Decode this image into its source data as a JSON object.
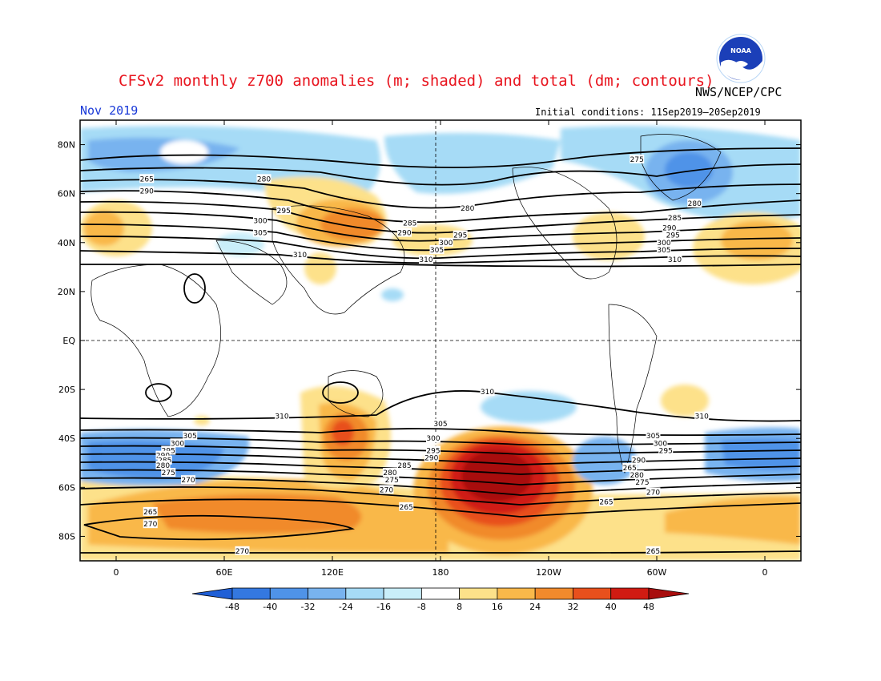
{
  "header": {
    "title": "CFSv2 monthly z700 anomalies (m; shaded) and total (dm; contours)",
    "agency": "NWS/NCEP/CPC",
    "month": "Nov 2019",
    "initial_conditions": "Initial conditions: 11Sep2019–20Sep2019",
    "logo_text": "NOAA"
  },
  "map": {
    "lat_labels": [
      "80N",
      "60N",
      "40N",
      "20N",
      "EQ",
      "20S",
      "40S",
      "60S",
      "80S"
    ],
    "lat_values": [
      80,
      60,
      40,
      20,
      0,
      -20,
      -40,
      -60,
      -80
    ],
    "lon_labels": [
      "0",
      "60E",
      "120E",
      "180",
      "120W",
      "60W",
      "0"
    ],
    "lon_values": [
      0,
      60,
      120,
      180,
      240,
      300,
      360
    ],
    "lon_range": [
      -20,
      380
    ],
    "lat_range": [
      -90,
      90
    ],
    "contour_labels": [
      {
        "text": "265",
        "lon": 17,
        "lat": 66
      },
      {
        "text": "290",
        "lon": 17,
        "lat": 61
      },
      {
        "text": "280",
        "lon": 82,
        "lat": 66
      },
      {
        "text": "295",
        "lon": 93,
        "lat": 53
      },
      {
        "text": "300",
        "lon": 80,
        "lat": 49
      },
      {
        "text": "305",
        "lon": 80,
        "lat": 44
      },
      {
        "text": "310",
        "lon": 102,
        "lat": 35
      },
      {
        "text": "285",
        "lon": 163,
        "lat": 48
      },
      {
        "text": "290",
        "lon": 160,
        "lat": 44
      },
      {
        "text": "295",
        "lon": 191,
        "lat": 43
      },
      {
        "text": "300",
        "lon": 183,
        "lat": 40
      },
      {
        "text": "305",
        "lon": 178,
        "lat": 37
      },
      {
        "text": "310",
        "lon": 172,
        "lat": 33
      },
      {
        "text": "280",
        "lon": 195,
        "lat": 54
      },
      {
        "text": "275",
        "lon": 289,
        "lat": 74
      },
      {
        "text": "280",
        "lon": 321,
        "lat": 56
      },
      {
        "text": "285",
        "lon": 310,
        "lat": 50
      },
      {
        "text": "290",
        "lon": 307,
        "lat": 46
      },
      {
        "text": "295",
        "lon": 309,
        "lat": 43
      },
      {
        "text": "300",
        "lon": 304,
        "lat": 40
      },
      {
        "text": "305",
        "lon": 304,
        "lat": 37
      },
      {
        "text": "310",
        "lon": 310,
        "lat": 33
      },
      {
        "text": "310",
        "lon": 206,
        "lat": -21
      },
      {
        "text": "310",
        "lon": 92,
        "lat": -31
      },
      {
        "text": "310",
        "lon": 325,
        "lat": -31
      },
      {
        "text": "305",
        "lon": 41,
        "lat": -39
      },
      {
        "text": "300",
        "lon": 34,
        "lat": -42
      },
      {
        "text": "295",
        "lon": 29,
        "lat": -45
      },
      {
        "text": "290",
        "lon": 26,
        "lat": -47
      },
      {
        "text": "285",
        "lon": 27,
        "lat": -49
      },
      {
        "text": "280",
        "lon": 26,
        "lat": -51
      },
      {
        "text": "275",
        "lon": 29,
        "lat": -54
      },
      {
        "text": "270",
        "lon": 40,
        "lat": -57
      },
      {
        "text": "305",
        "lon": 180,
        "lat": -34
      },
      {
        "text": "300",
        "lon": 176,
        "lat": -40
      },
      {
        "text": "295",
        "lon": 176,
        "lat": -45
      },
      {
        "text": "290",
        "lon": 175,
        "lat": -48
      },
      {
        "text": "285",
        "lon": 160,
        "lat": -51
      },
      {
        "text": "280",
        "lon": 152,
        "lat": -54
      },
      {
        "text": "275",
        "lon": 153,
        "lat": -57
      },
      {
        "text": "270",
        "lon": 150,
        "lat": -61
      },
      {
        "text": "265",
        "lon": 161,
        "lat": -68
      },
      {
        "text": "265",
        "lon": 19,
        "lat": -70
      },
      {
        "text": "270",
        "lon": 19,
        "lat": -75
      },
      {
        "text": "270",
        "lon": 70,
        "lat": -86
      },
      {
        "text": "305",
        "lon": 298,
        "lat": -39
      },
      {
        "text": "300",
        "lon": 302,
        "lat": -42
      },
      {
        "text": "295",
        "lon": 305,
        "lat": -45
      },
      {
        "text": "290",
        "lon": 290,
        "lat": -49
      },
      {
        "text": "265",
        "lon": 285,
        "lat": -52
      },
      {
        "text": "280",
        "lon": 289,
        "lat": -55
      },
      {
        "text": "275",
        "lon": 292,
        "lat": -58
      },
      {
        "text": "270",
        "lon": 298,
        "lat": -62
      },
      {
        "text": "265",
        "lon": 272,
        "lat": -66
      },
      {
        "text": "265",
        "lon": 298,
        "lat": -86
      }
    ]
  },
  "colorbar": {
    "labels": [
      "-48",
      "-40",
      "-32",
      "-24",
      "-16",
      "-8",
      "8",
      "16",
      "24",
      "32",
      "40",
      "48"
    ],
    "colors": [
      "#1f5fd6",
      "#3478e0",
      "#4f93e8",
      "#78b3ef",
      "#a6dbf6",
      "#c9eef9",
      "#ffffff",
      "#fde18a",
      "#f9b84a",
      "#f18a2c",
      "#e8501c",
      "#d01b12",
      "#a80d0d"
    ]
  }
}
